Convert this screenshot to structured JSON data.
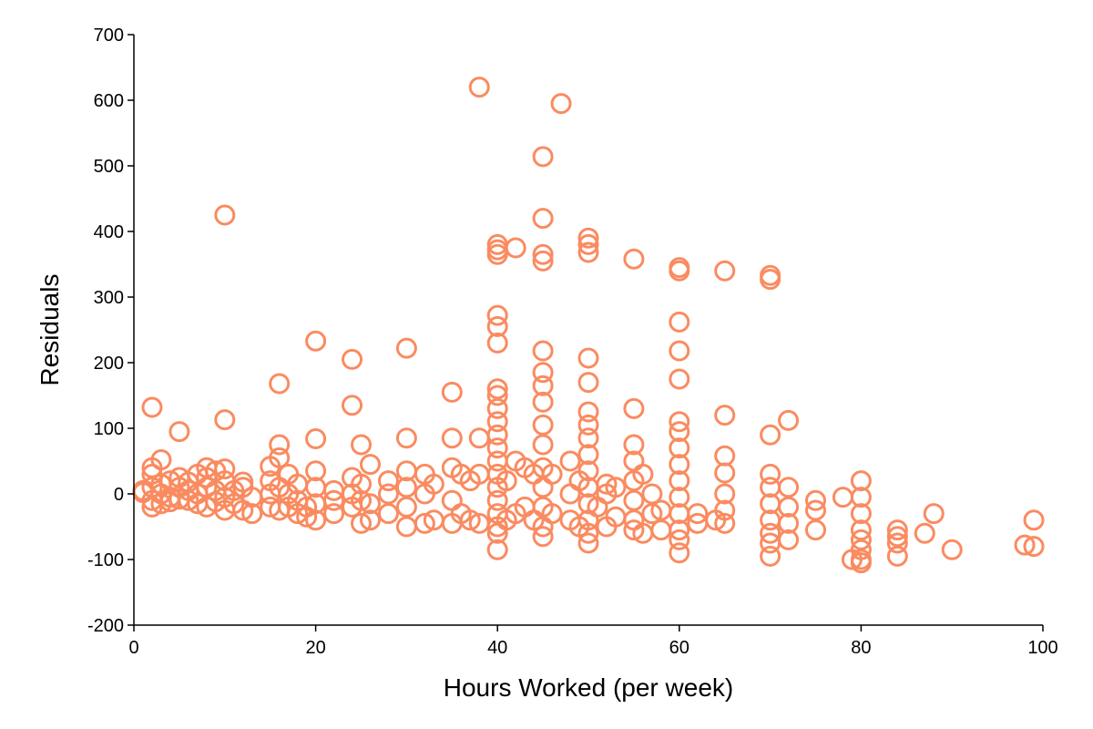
{
  "chart_data": {
    "type": "scatter",
    "title": "",
    "xlabel": "Hours Worked (per week)",
    "ylabel": "Residuals",
    "xlim": [
      0,
      100
    ],
    "ylim": [
      -200,
      700
    ],
    "xticks": [
      0,
      20,
      40,
      60,
      80,
      100
    ],
    "yticks": [
      -200,
      -100,
      0,
      100,
      200,
      300,
      400,
      500,
      600,
      700
    ],
    "grid": false,
    "legend": "none",
    "marker": "open-circle",
    "color": "#FA8B60",
    "series": [
      {
        "points": [
          [
            1,
            2
          ],
          [
            1,
            5
          ],
          [
            2,
            -10
          ],
          [
            2,
            10
          ],
          [
            2,
            30
          ],
          [
            2,
            132
          ],
          [
            2,
            40
          ],
          [
            2,
            -20
          ],
          [
            3,
            0
          ],
          [
            3,
            15
          ],
          [
            3,
            52
          ],
          [
            3,
            -15
          ],
          [
            4,
            -5
          ],
          [
            4,
            20
          ],
          [
            4,
            -12
          ],
          [
            5,
            25
          ],
          [
            5,
            95
          ],
          [
            5,
            -8
          ],
          [
            5,
            10
          ],
          [
            6,
            -10
          ],
          [
            6,
            18
          ],
          [
            6,
            5
          ],
          [
            7,
            0
          ],
          [
            7,
            -15
          ],
          [
            7,
            30
          ],
          [
            8,
            -20
          ],
          [
            8,
            10
          ],
          [
            8,
            40
          ],
          [
            8,
            25
          ],
          [
            9,
            -12
          ],
          [
            9,
            35
          ],
          [
            9,
            5
          ],
          [
            10,
            425
          ],
          [
            10,
            113
          ],
          [
            10,
            38
          ],
          [
            10,
            -5
          ],
          [
            10,
            -25
          ],
          [
            10,
            20
          ],
          [
            11,
            5
          ],
          [
            11,
            -15
          ],
          [
            12,
            10
          ],
          [
            12,
            -25
          ],
          [
            12,
            18
          ],
          [
            13,
            -5
          ],
          [
            13,
            -30
          ],
          [
            15,
            0
          ],
          [
            15,
            20
          ],
          [
            15,
            42
          ],
          [
            15,
            -20
          ],
          [
            16,
            168
          ],
          [
            16,
            75
          ],
          [
            16,
            55
          ],
          [
            16,
            -25
          ],
          [
            16,
            10
          ],
          [
            17,
            30
          ],
          [
            17,
            -20
          ],
          [
            17,
            0
          ],
          [
            18,
            -30
          ],
          [
            18,
            -10
          ],
          [
            18,
            15
          ],
          [
            19,
            -35
          ],
          [
            19,
            -20
          ],
          [
            20,
            233
          ],
          [
            20,
            84
          ],
          [
            20,
            35
          ],
          [
            20,
            10
          ],
          [
            20,
            -40
          ],
          [
            20,
            -15
          ],
          [
            22,
            -10
          ],
          [
            22,
            -30
          ],
          [
            22,
            5
          ],
          [
            24,
            205
          ],
          [
            24,
            135
          ],
          [
            24,
            25
          ],
          [
            24,
            -20
          ],
          [
            24,
            0
          ],
          [
            25,
            75
          ],
          [
            25,
            -45
          ],
          [
            25,
            -10
          ],
          [
            25,
            15
          ],
          [
            26,
            45
          ],
          [
            26,
            -40
          ],
          [
            26,
            -15
          ],
          [
            28,
            20
          ],
          [
            28,
            -30
          ],
          [
            28,
            0
          ],
          [
            30,
            222
          ],
          [
            30,
            85
          ],
          [
            30,
            35
          ],
          [
            30,
            -50
          ],
          [
            30,
            -20
          ],
          [
            30,
            10
          ],
          [
            32,
            30
          ],
          [
            32,
            -45
          ],
          [
            32,
            0
          ],
          [
            33,
            -40
          ],
          [
            33,
            15
          ],
          [
            35,
            155
          ],
          [
            35,
            85
          ],
          [
            35,
            40
          ],
          [
            35,
            -45
          ],
          [
            35,
            -10
          ],
          [
            36,
            30
          ],
          [
            36,
            -30
          ],
          [
            37,
            -40
          ],
          [
            37,
            20
          ],
          [
            38,
            620
          ],
          [
            38,
            85
          ],
          [
            38,
            30
          ],
          [
            38,
            -45
          ],
          [
            40,
            380
          ],
          [
            40,
            372
          ],
          [
            40,
            365
          ],
          [
            40,
            272
          ],
          [
            40,
            255
          ],
          [
            40,
            230
          ],
          [
            40,
            160
          ],
          [
            40,
            150
          ],
          [
            40,
            130
          ],
          [
            40,
            110
          ],
          [
            40,
            90
          ],
          [
            40,
            70
          ],
          [
            40,
            50
          ],
          [
            40,
            30
          ],
          [
            40,
            10
          ],
          [
            40,
            -10
          ],
          [
            40,
            -30
          ],
          [
            40,
            -50
          ],
          [
            40,
            -60
          ],
          [
            40,
            -85
          ],
          [
            41,
            20
          ],
          [
            41,
            -40
          ],
          [
            42,
            375
          ],
          [
            42,
            50
          ],
          [
            42,
            -30
          ],
          [
            43,
            40
          ],
          [
            43,
            -20
          ],
          [
            44,
            30
          ],
          [
            44,
            -40
          ],
          [
            45,
            514
          ],
          [
            45,
            420
          ],
          [
            45,
            365
          ],
          [
            45,
            355
          ],
          [
            45,
            218
          ],
          [
            45,
            185
          ],
          [
            45,
            165
          ],
          [
            45,
            140
          ],
          [
            45,
            105
          ],
          [
            45,
            75
          ],
          [
            45,
            40
          ],
          [
            45,
            10
          ],
          [
            45,
            -20
          ],
          [
            45,
            -50
          ],
          [
            45,
            -65
          ],
          [
            46,
            30
          ],
          [
            46,
            -30
          ],
          [
            47,
            595
          ],
          [
            48,
            50
          ],
          [
            48,
            -40
          ],
          [
            48,
            0
          ],
          [
            49,
            20
          ],
          [
            49,
            -50
          ],
          [
            50,
            390
          ],
          [
            50,
            380
          ],
          [
            50,
            368
          ],
          [
            50,
            207
          ],
          [
            50,
            170
          ],
          [
            50,
            125
          ],
          [
            50,
            105
          ],
          [
            50,
            85
          ],
          [
            50,
            60
          ],
          [
            50,
            35
          ],
          [
            50,
            10
          ],
          [
            50,
            -15
          ],
          [
            50,
            -40
          ],
          [
            50,
            -60
          ],
          [
            50,
            -75
          ],
          [
            51,
            -20
          ],
          [
            52,
            0
          ],
          [
            52,
            -50
          ],
          [
            52,
            15
          ],
          [
            53,
            10
          ],
          [
            53,
            -35
          ],
          [
            55,
            358
          ],
          [
            55,
            130
          ],
          [
            55,
            75
          ],
          [
            55,
            50
          ],
          [
            55,
            20
          ],
          [
            55,
            -10
          ],
          [
            55,
            -40
          ],
          [
            55,
            -55
          ],
          [
            56,
            30
          ],
          [
            56,
            -60
          ],
          [
            57,
            0
          ],
          [
            57,
            -30
          ],
          [
            58,
            -25
          ],
          [
            58,
            -55
          ],
          [
            60,
            345
          ],
          [
            60,
            340
          ],
          [
            60,
            262
          ],
          [
            60,
            218
          ],
          [
            60,
            175
          ],
          [
            60,
            110
          ],
          [
            60,
            95
          ],
          [
            60,
            70
          ],
          [
            60,
            45
          ],
          [
            60,
            20
          ],
          [
            60,
            -5
          ],
          [
            60,
            -30
          ],
          [
            60,
            -55
          ],
          [
            60,
            -70
          ],
          [
            60,
            -90
          ],
          [
            62,
            -30
          ],
          [
            62,
            -45
          ],
          [
            64,
            -40
          ],
          [
            65,
            340
          ],
          [
            65,
            120
          ],
          [
            65,
            58
          ],
          [
            65,
            32
          ],
          [
            65,
            0
          ],
          [
            65,
            -25
          ],
          [
            65,
            -45
          ],
          [
            70,
            333
          ],
          [
            70,
            327
          ],
          [
            70,
            90
          ],
          [
            70,
            30
          ],
          [
            70,
            10
          ],
          [
            70,
            -15
          ],
          [
            70,
            -40
          ],
          [
            70,
            -60
          ],
          [
            70,
            -75
          ],
          [
            70,
            -95
          ],
          [
            72,
            112
          ],
          [
            72,
            10
          ],
          [
            72,
            -20
          ],
          [
            72,
            -45
          ],
          [
            72,
            -70
          ],
          [
            75,
            -10
          ],
          [
            75,
            -25
          ],
          [
            75,
            -55
          ],
          [
            78,
            -5
          ],
          [
            79,
            -100
          ],
          [
            80,
            20
          ],
          [
            80,
            -5
          ],
          [
            80,
            -30
          ],
          [
            80,
            -55
          ],
          [
            80,
            -70
          ],
          [
            80,
            -85
          ],
          [
            80,
            -100
          ],
          [
            80,
            -105
          ],
          [
            84,
            -55
          ],
          [
            84,
            -65
          ],
          [
            84,
            -75
          ],
          [
            84,
            -95
          ],
          [
            87,
            -60
          ],
          [
            88,
            -30
          ],
          [
            90,
            -85
          ],
          [
            98,
            -78
          ],
          [
            99,
            -40
          ],
          [
            99,
            -80
          ]
        ]
      }
    ]
  }
}
